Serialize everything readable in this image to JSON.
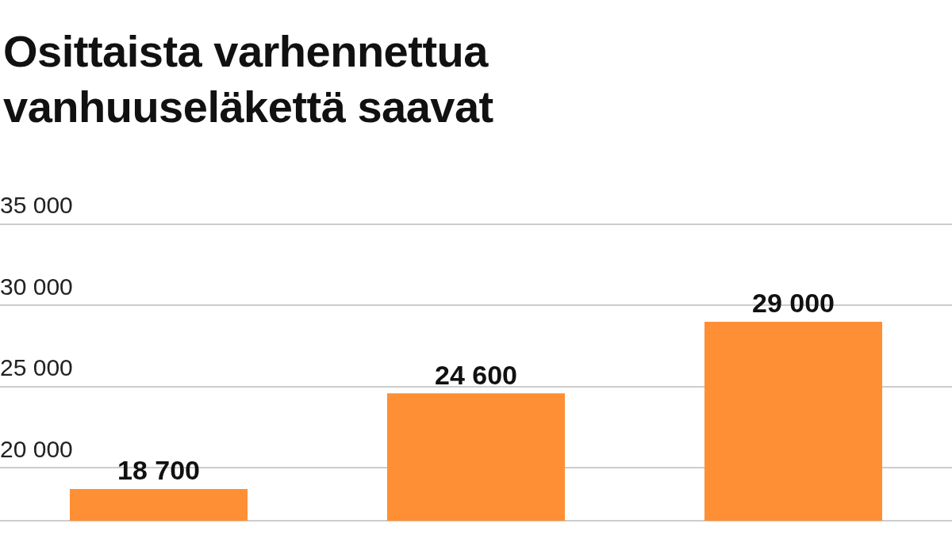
{
  "chart_data": {
    "type": "bar",
    "title": "Osittaista varhennettua vanhuuseläkettä saavat",
    "categories": [
      null,
      null,
      null
    ],
    "values": [
      18700,
      24600,
      29000
    ],
    "value_labels": [
      "18 700",
      "24 600",
      "29 000"
    ],
    "color": "#ff8f35",
    "ylim": [
      16750,
      35000
    ],
    "yticks": [
      {
        "value": 20000,
        "label": "20 000"
      },
      {
        "value": 25000,
        "label": "25 000"
      },
      {
        "value": 30000,
        "label": "30 000"
      },
      {
        "value": 35000,
        "label": "35 000"
      }
    ],
    "grid": "y",
    "tick_labels": "y"
  }
}
